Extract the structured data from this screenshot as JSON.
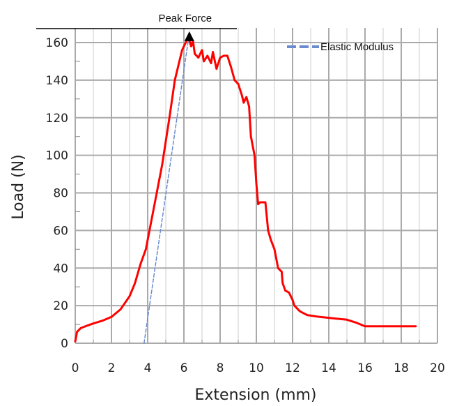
{
  "chart_data": {
    "type": "line",
    "title": "",
    "xlabel": "Extension (mm)",
    "ylabel": "Load (N)",
    "xlim": [
      0,
      20
    ],
    "ylim": [
      0,
      165
    ],
    "x_ticks": [
      0,
      2,
      4,
      6,
      8,
      10,
      12,
      14,
      16,
      18,
      20
    ],
    "y_ticks": [
      0,
      20,
      40,
      60,
      80,
      100,
      120,
      140,
      160
    ],
    "grid": true,
    "legend_position": "top-right",
    "series": [
      {
        "name": "",
        "color": "#ff0000",
        "style": "solid",
        "x": [
          0.0,
          0.1,
          0.3,
          0.7,
          1.0,
          1.5,
          2.0,
          2.5,
          3.0,
          3.3,
          3.6,
          3.9,
          4.1,
          4.4,
          4.8,
          5.2,
          5.5,
          5.7,
          5.9,
          6.1,
          6.25,
          6.4,
          6.5,
          6.6,
          6.8,
          7.0,
          7.1,
          7.3,
          7.5,
          7.6,
          7.8,
          8.0,
          8.2,
          8.4,
          8.6,
          8.8,
          9.0,
          9.2,
          9.3,
          9.45,
          9.6,
          9.7,
          9.9,
          10.0,
          10.1,
          10.2,
          10.5,
          10.65,
          10.8,
          11.0,
          11.2,
          11.4,
          11.45,
          11.6,
          11.8,
          12.0,
          12.1,
          12.4,
          12.8,
          13.5,
          14.5,
          15.0,
          15.5,
          16.0,
          17.0,
          18.0,
          18.8
        ],
        "y": [
          1,
          6,
          8,
          9.5,
          10.5,
          12,
          14,
          18,
          25,
          32,
          42,
          50,
          60,
          75,
          95,
          120,
          140,
          148,
          156,
          160,
          163,
          158,
          161,
          154,
          152,
          156,
          150,
          153,
          149,
          155,
          146,
          152,
          153,
          153,
          147,
          140,
          138,
          132,
          128,
          131,
          126,
          110,
          100,
          85,
          74,
          75,
          75,
          60,
          55,
          50,
          40,
          38,
          32,
          28,
          27,
          23,
          20,
          17,
          15,
          14,
          13,
          12.5,
          11,
          9,
          9,
          9,
          9
        ]
      },
      {
        "name": "Elastic Modulus",
        "color": "#6b8ccf",
        "style": "dashed",
        "x": [
          3.8,
          6.3
        ],
        "y": [
          0,
          165
        ]
      }
    ],
    "annotations": [
      {
        "text": "Peak Force",
        "x": 6.3,
        "y": 163,
        "marker": "triangle"
      }
    ]
  }
}
